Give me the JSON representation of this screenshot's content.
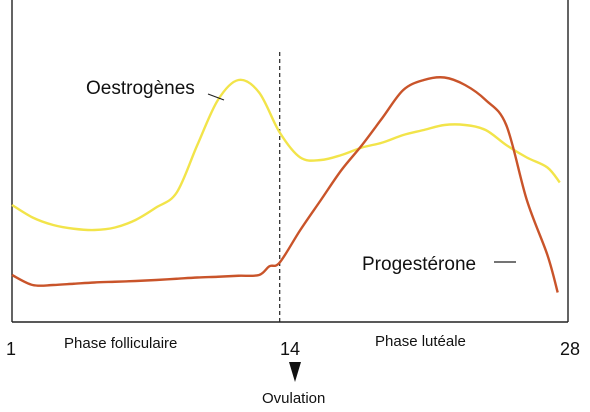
{
  "chart_data": {
    "type": "line",
    "x_ticks": [
      "1",
      "14",
      "28"
    ],
    "xlim": [
      1,
      28
    ],
    "ylim": [
      0,
      100
    ],
    "grid": false,
    "annotations": {
      "phase_follicular": "Phase folliculaire",
      "phase_luteal": "Phase lutéale",
      "ovulation": "Ovulation",
      "ovulation_day": 14
    },
    "series": [
      {
        "name": "Oestrogènes",
        "color": "#f2e44a",
        "points": [
          [
            1,
            38
          ],
          [
            2,
            33
          ],
          [
            3,
            30
          ],
          [
            4,
            28.5
          ],
          [
            5,
            28
          ],
          [
            6,
            29
          ],
          [
            7,
            32
          ],
          [
            8,
            37
          ],
          [
            9,
            43
          ],
          [
            10,
            62
          ],
          [
            11,
            80
          ],
          [
            12,
            88
          ],
          [
            13,
            83
          ],
          [
            14,
            67
          ],
          [
            15,
            57
          ],
          [
            16,
            56
          ],
          [
            17,
            58
          ],
          [
            18,
            61
          ],
          [
            19,
            63
          ],
          [
            20,
            66
          ],
          [
            21,
            68
          ],
          [
            22,
            70
          ],
          [
            23,
            70
          ],
          [
            24,
            68
          ],
          [
            25,
            62
          ],
          [
            26,
            57
          ],
          [
            27,
            53
          ],
          [
            27.6,
            47
          ]
        ]
      },
      {
        "name": "Progestérone",
        "color": "#c9542a",
        "points": [
          [
            1,
            10
          ],
          [
            2,
            6
          ],
          [
            3,
            6
          ],
          [
            4,
            6.5
          ],
          [
            5,
            7
          ],
          [
            6,
            7.3
          ],
          [
            7,
            7.6
          ],
          [
            8,
            8
          ],
          [
            9,
            8.5
          ],
          [
            10,
            9
          ],
          [
            11,
            9.3
          ],
          [
            12,
            9.7
          ],
          [
            13,
            10
          ],
          [
            13.5,
            13.5
          ],
          [
            14,
            15
          ],
          [
            15,
            28
          ],
          [
            16,
            40
          ],
          [
            17,
            52
          ],
          [
            18,
            62
          ],
          [
            19,
            73
          ],
          [
            20,
            84
          ],
          [
            21,
            88
          ],
          [
            22,
            89
          ],
          [
            23,
            86
          ],
          [
            24,
            80
          ],
          [
            25,
            70
          ],
          [
            26,
            40
          ],
          [
            27,
            18
          ],
          [
            27.5,
            3
          ]
        ]
      }
    ]
  }
}
